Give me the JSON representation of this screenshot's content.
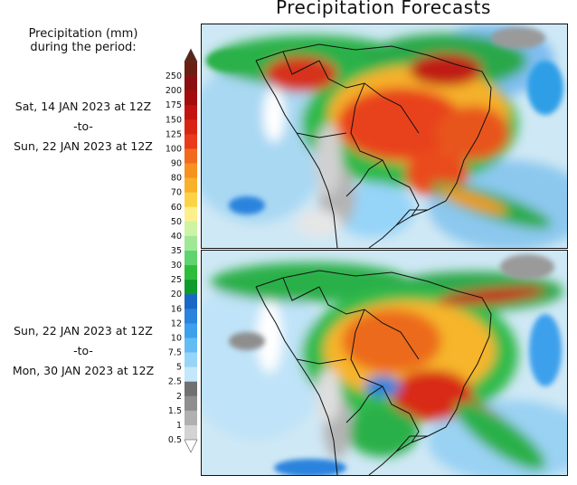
{
  "title": "Precipitation Forecasts",
  "legend_heading": [
    "Precipitation (mm)",
    "during the period:"
  ],
  "periods": [
    {
      "start": "Sat, 14 JAN 2023 at 12Z",
      "sep": "-to-",
      "end": "Sun, 22 JAN 2023 at 12Z"
    },
    {
      "start": "Sun, 22 JAN 2023 at 12Z",
      "sep": "-to-",
      "end": "Mon, 30 JAN 2023 at 12Z"
    }
  ],
  "colorbar": {
    "labels": [
      "250",
      "200",
      "175",
      "150",
      "125",
      "100",
      "90",
      "80",
      "70",
      "60",
      "50",
      "40",
      "35",
      "30",
      "25",
      "20",
      "16",
      "12",
      "10",
      "7.5",
      "5",
      "2.5",
      "2",
      "1.5",
      "1",
      "0.5"
    ],
    "colors": [
      "#6b1f12",
      "#8c0f0f",
      "#a40d0d",
      "#c2140f",
      "#d92414",
      "#e93a1a",
      "#f26a1e",
      "#f7911f",
      "#f9b12a",
      "#fbd346",
      "#fdf08a",
      "#cdf3a5",
      "#9fe896",
      "#5fd36d",
      "#2ebc3c",
      "#0f9c2c",
      "#1b67c8",
      "#2a83dd",
      "#3da0ec",
      "#62bcf3",
      "#96d4f8",
      "#c3e7fb",
      "#707070",
      "#8e8e8e",
      "#b0b0b0",
      "#d3d3d3"
    ],
    "top_arrow_color": "#5a2417",
    "bottom_arrow_color": "#ffffff"
  },
  "maps": [
    {
      "name": "forecast-map-period-1"
    },
    {
      "name": "forecast-map-period-2"
    }
  ]
}
